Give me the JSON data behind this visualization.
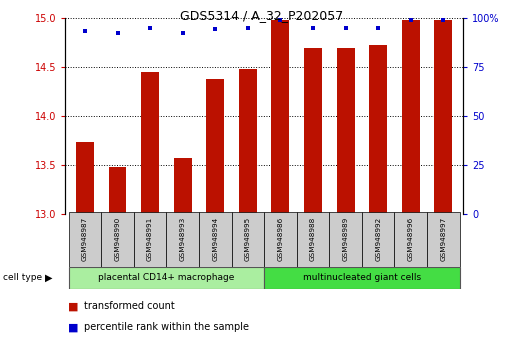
{
  "title": "GDS5314 / A_32_P202057",
  "samples": [
    "GSM948987",
    "GSM948990",
    "GSM948991",
    "GSM948993",
    "GSM948994",
    "GSM948995",
    "GSM948986",
    "GSM948988",
    "GSM948989",
    "GSM948992",
    "GSM948996",
    "GSM948997"
  ],
  "transformed_counts": [
    13.73,
    13.48,
    14.45,
    13.57,
    14.38,
    14.48,
    14.98,
    14.69,
    14.69,
    14.72,
    14.98,
    14.98
  ],
  "percentile_ranks": [
    93,
    92,
    95,
    92,
    94,
    95,
    99,
    95,
    95,
    95,
    99,
    99
  ],
  "group1_label": "placental CD14+ macrophage",
  "group2_label": "multinucleated giant cells",
  "group1_count": 6,
  "group2_count": 6,
  "bar_color": "#bb1100",
  "dot_color": "#0000cc",
  "group1_bg": "#aaeea0",
  "group2_bg": "#44dd44",
  "sample_box_bg": "#cccccc",
  "ylim_left": [
    13,
    15
  ],
  "ylim_right": [
    0,
    100
  ],
  "yticks_left": [
    13,
    13.5,
    14,
    14.5,
    15
  ],
  "yticks_right": [
    0,
    25,
    50,
    75,
    100
  ],
  "legend_bar_label": "transformed count",
  "legend_dot_label": "percentile rank within the sample",
  "cell_type_label": "cell type",
  "bar_width": 0.55
}
